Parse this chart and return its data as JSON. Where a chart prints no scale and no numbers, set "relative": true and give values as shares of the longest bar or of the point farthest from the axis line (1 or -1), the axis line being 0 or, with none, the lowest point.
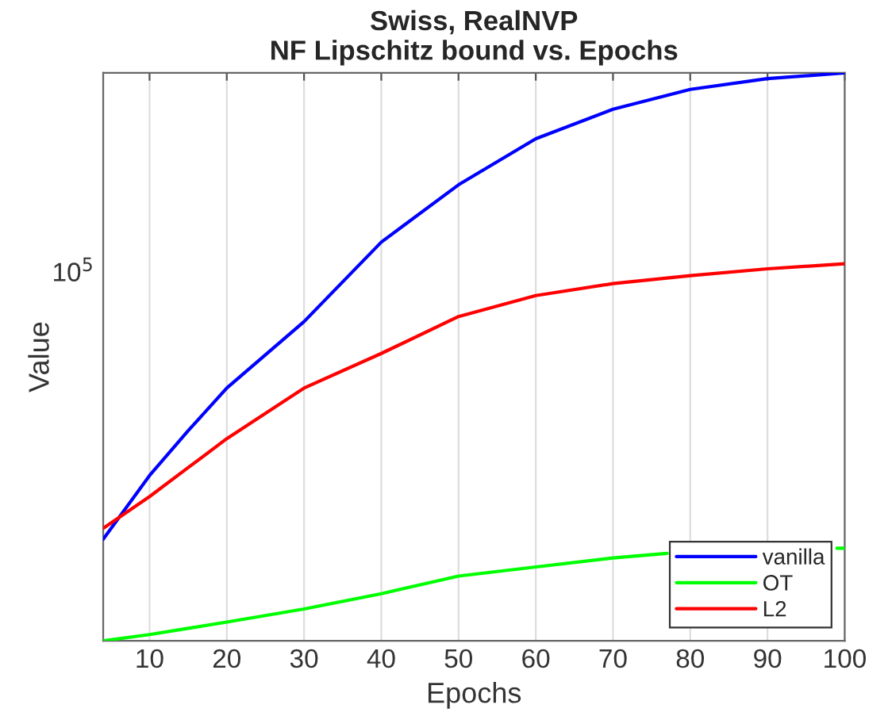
{
  "chart_data": {
    "type": "line",
    "title": "Swiss, RealNVP",
    "subtitle": "NF Lipschitz bound vs. Epochs",
    "xlabel": "Epochs",
    "ylabel": "Value",
    "relative": true,
    "xlim": [
      4,
      100
    ],
    "xticks": [
      10,
      20,
      30,
      40,
      50,
      60,
      70,
      80,
      90,
      100
    ],
    "annotations": [
      "10$^{5}$"
    ],
    "grid": "x",
    "legend": "bottom right",
    "line_style": "solid",
    "marker": "none",
    "x": [
      4,
      10,
      15,
      20,
      30,
      40,
      50,
      60,
      70,
      80,
      90,
      100
    ],
    "series": [
      {
        "name": "vanilla",
        "color": "#0000ff",
        "values": [
          0.179,
          0.291,
          0.37,
          0.445,
          0.562,
          0.702,
          0.803,
          0.884,
          0.936,
          0.971,
          0.99,
          1
        ]
      },
      {
        "name": "OT",
        "color": "#00ff00",
        "x": [
          4,
          10,
          15,
          20,
          30,
          40,
          50,
          60,
          70,
          77,
          80,
          90,
          99,
          100
        ],
        "values": [
          0,
          0.011,
          0.022,
          0.033,
          0.056,
          0.083,
          0.114,
          0.13,
          0.146,
          0.154,
          null,
          null,
          0.163,
          0.163
        ]
      },
      {
        "name": "L2",
        "color": "#ff0000",
        "values": [
          0.198,
          0.254,
          0.305,
          0.356,
          0.445,
          0.506,
          0.571,
          0.608,
          0.629,
          0.643,
          0.655,
          0.664
        ]
      }
    ]
  }
}
